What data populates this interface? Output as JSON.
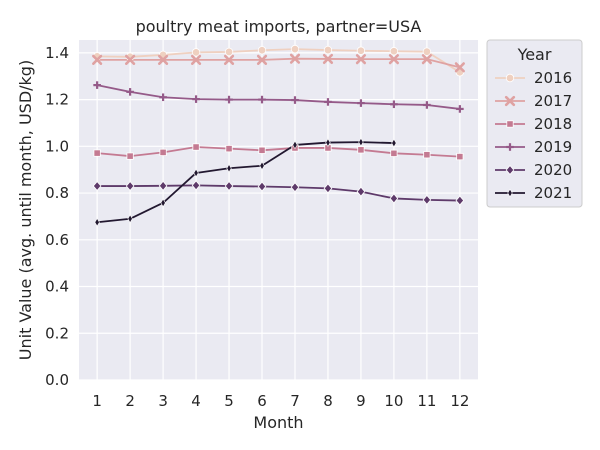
{
  "chart_data": {
    "type": "line",
    "title": "poultry meat imports, partner=USA",
    "xlabel": "Month",
    "ylabel": "Unit Value (avg. until month, USD/kg)",
    "x": [
      1,
      2,
      3,
      4,
      5,
      6,
      7,
      8,
      9,
      10,
      11,
      12
    ],
    "x_ticks": [
      "1",
      "2",
      "3",
      "4",
      "5",
      "6",
      "7",
      "8",
      "9",
      "10",
      "11",
      "12"
    ],
    "xlim": [
      0.45,
      12.55
    ],
    "ylim": [
      0,
      1.455
    ],
    "y_ticks": [
      "0.0",
      "0.2",
      "0.4",
      "0.6",
      "0.8",
      "1.0",
      "1.2",
      "1.4"
    ],
    "grid": true,
    "legend_title": "Year",
    "legend_placement": "outside-right-top",
    "series": [
      {
        "name": "2016",
        "color": "#efd0c0",
        "marker": "circle",
        "values": [
          1.385,
          1.383,
          1.391,
          1.402,
          1.404,
          1.411,
          1.416,
          1.412,
          1.409,
          1.407,
          1.405,
          1.317
        ]
      },
      {
        "name": "2017",
        "color": "#dfa2a2",
        "marker": "x",
        "values": [
          1.37,
          1.37,
          1.37,
          1.37,
          1.37,
          1.37,
          1.375,
          1.374,
          1.373,
          1.373,
          1.373,
          1.338
        ]
      },
      {
        "name": "2018",
        "color": "#c47a92",
        "marker": "square",
        "values": [
          0.971,
          0.958,
          0.974,
          0.997,
          0.99,
          0.983,
          0.993,
          0.993,
          0.985,
          0.97,
          0.964,
          0.956
        ]
      },
      {
        "name": "2019",
        "color": "#955a89",
        "marker": "plus",
        "values": [
          1.262,
          1.233,
          1.21,
          1.202,
          1.2,
          1.2,
          1.198,
          1.19,
          1.185,
          1.18,
          1.177,
          1.16
        ]
      },
      {
        "name": "2020",
        "color": "#5e3a6a",
        "marker": "diamond",
        "values": [
          0.83,
          0.83,
          0.831,
          0.833,
          0.83,
          0.828,
          0.825,
          0.82,
          0.806,
          0.777,
          0.771,
          0.768
        ]
      },
      {
        "name": "2021",
        "color": "#221830",
        "marker": "diamond-thin",
        "values": [
          0.675,
          0.69,
          0.758,
          0.886,
          0.906,
          0.917,
          1.006,
          1.016,
          1.018,
          1.014,
          null,
          null
        ]
      }
    ]
  }
}
